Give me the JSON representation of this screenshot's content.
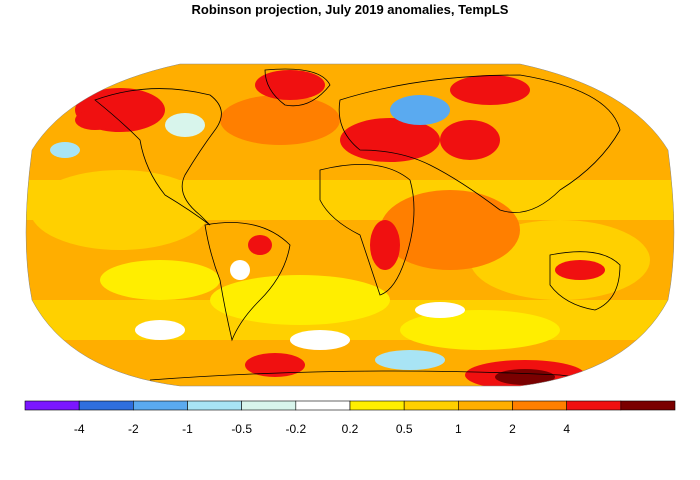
{
  "title": "Robinson projection, July 2019 anomalies, TempLS",
  "legend": {
    "colors": [
      "#7b16ff",
      "#2f6fde",
      "#5aaaf0",
      "#a8e4f5",
      "#d8f5ec",
      "#ffffff",
      "#ffee00",
      "#ffd000",
      "#ffae00",
      "#ff7f00",
      "#f01010",
      "#7a0000"
    ],
    "tick_labels": [
      "-4",
      "-2",
      "-1",
      "-0.5",
      "-0.2",
      "0.2",
      "0.5",
      "1",
      "2",
      "4"
    ]
  },
  "map": {
    "projection": "Robinson",
    "field_color": "#ffae00"
  }
}
